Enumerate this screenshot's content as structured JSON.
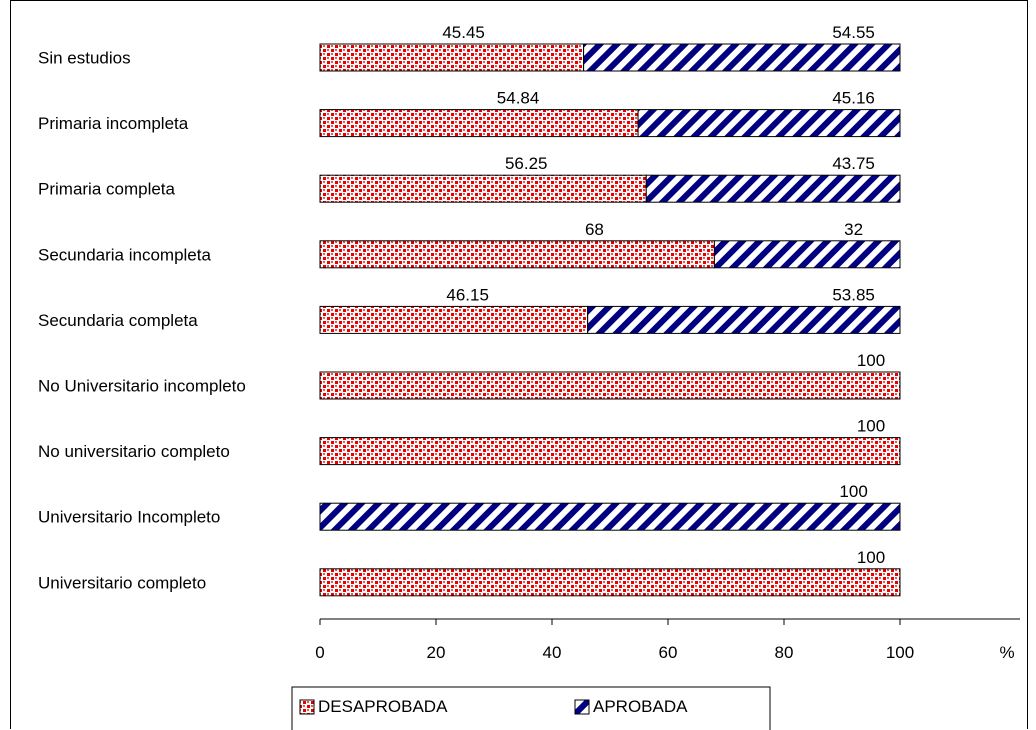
{
  "chart_data": {
    "type": "bar",
    "orientation": "horizontal",
    "stacked": true,
    "categories": [
      "Sin estudios",
      "Primaria incompleta",
      "Primaria completa",
      "Secundaria incompleta",
      "Secundaria completa",
      "No Universitario incompleto",
      "No universitario completo",
      "Universitario Incompleto",
      "Universitario completo"
    ],
    "series": [
      {
        "name": "DESAPROBADA",
        "color": "#e60000",
        "pattern": "dots",
        "values": [
          45.45,
          54.84,
          56.25,
          68,
          46.15,
          100,
          100,
          0,
          100
        ],
        "labels": [
          "45.45",
          "54.84",
          "56.25",
          "68",
          "46.15",
          "100",
          "100",
          "",
          "100"
        ]
      },
      {
        "name": "APROBADA",
        "color": "#000080",
        "pattern": "diagonal-stripes",
        "values": [
          54.55,
          45.16,
          43.75,
          32,
          53.85,
          0,
          0,
          100,
          0
        ],
        "labels": [
          "54.55",
          "45.16",
          "43.75",
          "32",
          "53.85",
          "",
          "",
          "100",
          ""
        ]
      }
    ],
    "xlim": [
      0,
      100
    ],
    "x_ticks": [
      "0",
      "20",
      "40",
      "60",
      "80",
      "100"
    ],
    "x_unit_label": "%",
    "grid": false,
    "legend_position": "bottom"
  }
}
